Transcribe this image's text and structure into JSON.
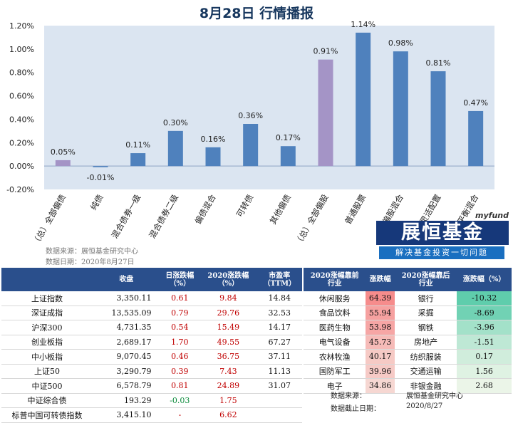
{
  "page": {
    "title": "8月28日  行情播报"
  },
  "chart_data": {
    "type": "bar",
    "categories": [
      "（总）全部偏债",
      "纯债",
      "混合债券一级",
      "混合债券二级",
      "偏债混合",
      "可转债",
      "其他偏债",
      "（总）全部偏股",
      "普通股票",
      "偏股混合",
      "灵活配置",
      "平衡混合"
    ],
    "values": [
      0.05,
      -0.01,
      0.11,
      0.3,
      0.16,
      0.36,
      0.17,
      0.91,
      1.14,
      0.98,
      0.81,
      0.47
    ],
    "value_labels": [
      "0.05%",
      "-0.01%",
      "0.11%",
      "0.30%",
      "0.16%",
      "0.36%",
      "0.17%",
      "0.91%",
      "1.14%",
      "0.98%",
      "0.81%",
      "0.47%"
    ],
    "highlighted": [
      "（总）全部偏债",
      "（总）全部偏股"
    ],
    "colors": {
      "bar": "#4f81bd",
      "highlight": "#a494c6",
      "plot_bg": "#dbe5f1"
    },
    "ylim": [
      -0.2,
      1.2
    ],
    "yticks": [
      "-0.20%",
      "0.00%",
      "0.20%",
      "0.40%",
      "0.60%",
      "0.80%",
      "1.00%",
      "1.20%"
    ],
    "ytick_values": [
      -0.2,
      0,
      0.2,
      0.4,
      0.6,
      0.8,
      1.0,
      1.2
    ],
    "grid": false,
    "xlabel": "",
    "ylabel": ""
  },
  "notes": {
    "source": "数据来源：展恒基金研究中心",
    "date": "数据日期：2020年8月27日"
  },
  "logo": {
    "small": "myfund",
    "name": "展恒基金",
    "slogan": "解决基金投资一切问题"
  },
  "index_table": {
    "headers": [
      "",
      "收盘",
      "日涨跌幅\n（%）",
      "2020涨跌幅\n（%）",
      "市盈率\n（TTM）"
    ],
    "rows": [
      {
        "name": "上证指数",
        "close": "3,350.11",
        "day": "0.61",
        "ytd": "9.84",
        "pe": "14.84"
      },
      {
        "name": "深证成指",
        "close": "13,535.09",
        "day": "0.79",
        "ytd": "29.76",
        "pe": "32.53"
      },
      {
        "name": "沪深300",
        "close": "4,731.35",
        "day": "0.54",
        "ytd": "15.49",
        "pe": "14.17"
      },
      {
        "name": "创业板指",
        "close": "2,689.17",
        "day": "1.70",
        "ytd": "49.55",
        "pe": "67.27"
      },
      {
        "name": "中小板指",
        "close": "9,070.45",
        "day": "0.46",
        "ytd": "36.75",
        "pe": "37.11"
      },
      {
        "name": "上证50",
        "close": "3,290.79",
        "day": "0.39",
        "ytd": "7.43",
        "pe": "11.13"
      },
      {
        "name": "中证500",
        "close": "6,578.79",
        "day": "0.81",
        "ytd": "24.89",
        "pe": "31.07"
      },
      {
        "name": "中证综合债",
        "close": "193.29",
        "day": "-0.03",
        "ytd": "1.75",
        "pe": ""
      },
      {
        "name": "标普中国可转债指数",
        "close": "3,415.10",
        "day": "-",
        "ytd": "6.62",
        "pe": ""
      }
    ]
  },
  "industry_table": {
    "headers": [
      "2020涨幅靠前\n行业",
      "涨跌幅",
      "2020涨幅靠后\n行业",
      "涨跌幅（%）"
    ],
    "rows": [
      {
        "top": "休闲服务",
        "top_val": "64.39",
        "bottom": "银行",
        "bottom_val": "-10.32"
      },
      {
        "top": "食品饮料",
        "top_val": "55.94",
        "bottom": "采掘",
        "bottom_val": "-8.69"
      },
      {
        "top": "医药生物",
        "top_val": "53.98",
        "bottom": "钢铁",
        "bottom_val": "-3.96"
      },
      {
        "top": "电气设备",
        "top_val": "45.73",
        "bottom": "房地产",
        "bottom_val": "-1.51"
      },
      {
        "top": "农林牧渔",
        "top_val": "40.17",
        "bottom": "纺织服装",
        "bottom_val": "0.17"
      },
      {
        "top": "国防军工",
        "top_val": "39.96",
        "bottom": "交通运输",
        "bottom_val": "1.56"
      },
      {
        "top": "电子",
        "top_val": "34.86",
        "bottom": "非银金融",
        "bottom_val": "2.68"
      }
    ],
    "source_label": "数据来源：",
    "source_value": "展恒基金研究中心",
    "date_label": "数据截止日期：",
    "date_value": "2020/8/27"
  }
}
